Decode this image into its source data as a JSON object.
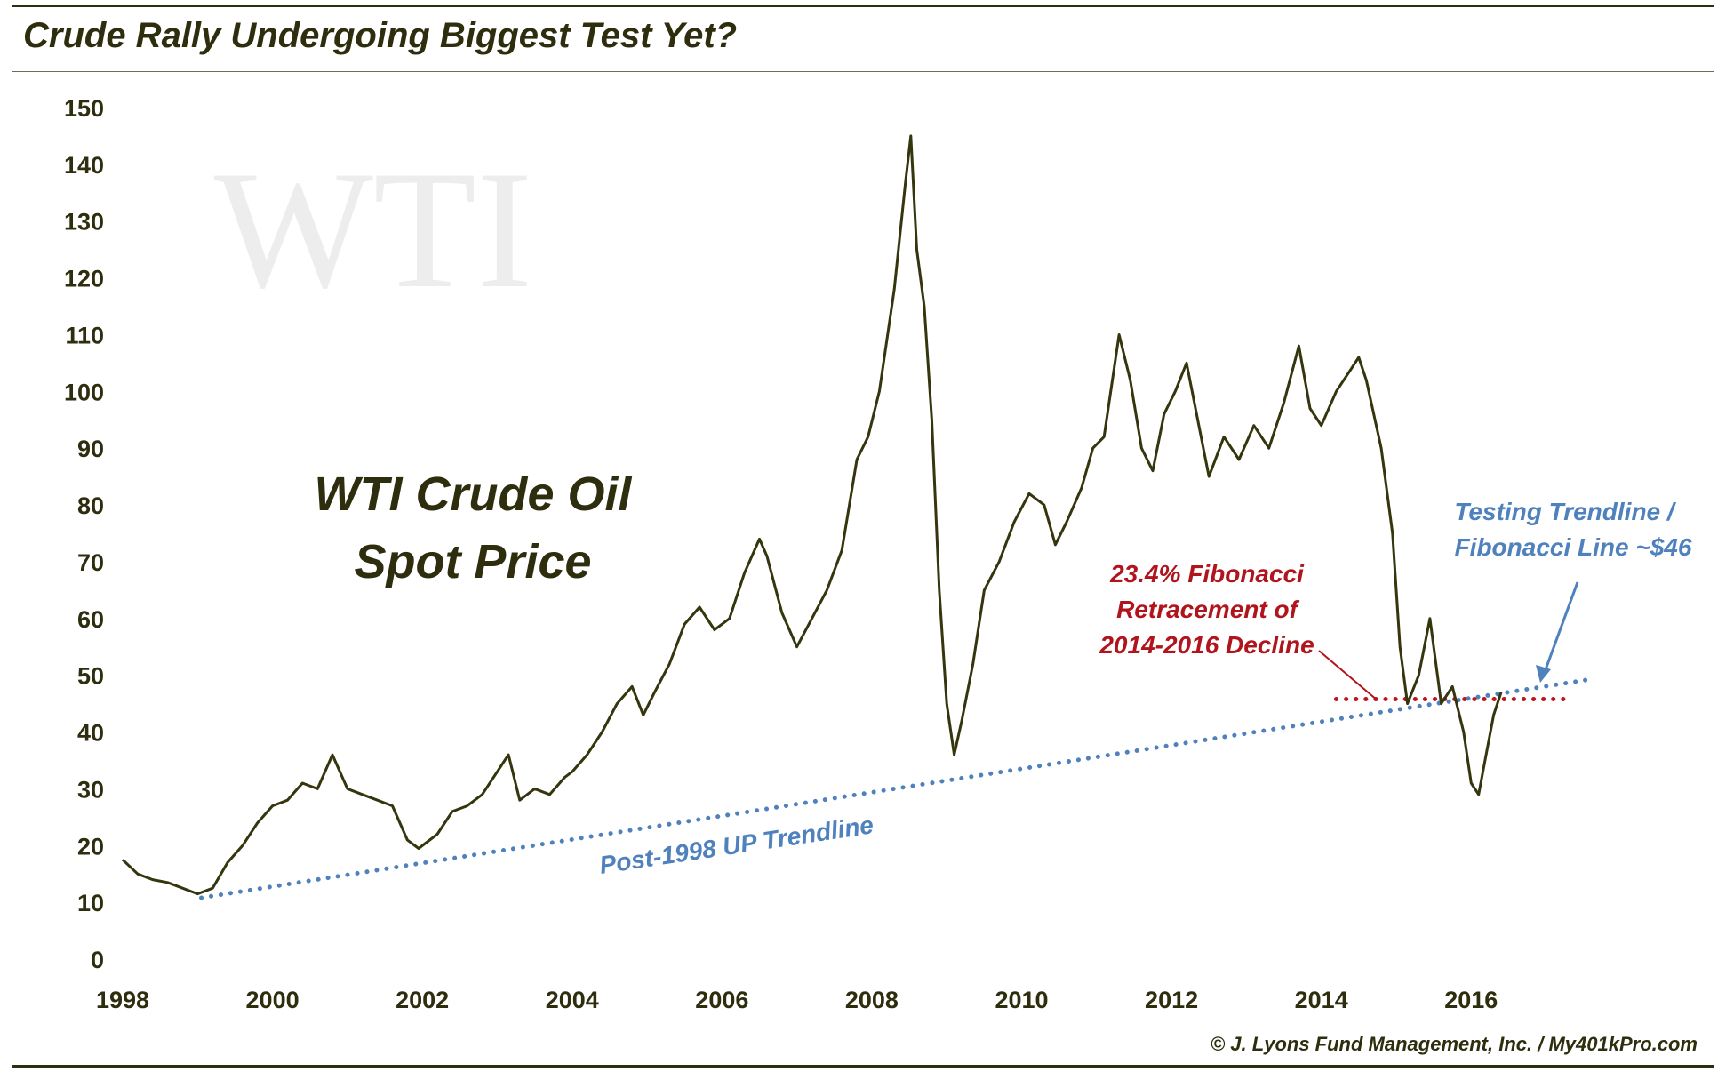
{
  "title": "Crude Rally Undergoing Biggest Test Yet?",
  "credit": "© J. Lyons Fund Management, Inc. / My401kPro.com",
  "watermark": "WTI",
  "chart_data": {
    "type": "line",
    "title": "Crude Rally Undergoing Biggest Test Yet?",
    "label": [
      "WTI Crude Oil",
      "Spot Price"
    ],
    "xlim": [
      1998,
      2018.5
    ],
    "ylim": [
      0,
      150
    ],
    "x_ticks": [
      "1998",
      "2000",
      "2002",
      "2004",
      "2006",
      "2008",
      "2010",
      "2012",
      "2014",
      "2016"
    ],
    "y_ticks": [
      "0",
      "10",
      "20",
      "30",
      "40",
      "50",
      "60",
      "70",
      "80",
      "90",
      "100",
      "110",
      "120",
      "130",
      "140",
      "150"
    ],
    "grid": false,
    "colors": {
      "price": "#35350e",
      "trendline": "#4f81bd",
      "fibonacci": "#c0141c",
      "text": "#2e2e0f"
    },
    "series": [
      {
        "x": [
          1998.0,
          1998.2,
          1998.4,
          1998.6,
          1998.8,
          1999.0,
          1999.2,
          1999.4,
          1999.6,
          1999.8,
          2000.0,
          2000.2,
          2000.4,
          2000.6,
          2000.8,
          2001.0,
          2001.2,
          2001.4,
          2001.6,
          2001.8,
          2001.95,
          2002.2,
          2002.4,
          2002.6,
          2002.8,
          2003.0,
          2003.15,
          2003.3,
          2003.5,
          2003.7,
          2003.9,
          2004.0,
          2004.2,
          2004.4,
          2004.6,
          2004.8,
          2004.95,
          2005.1,
          2005.3,
          2005.5,
          2005.7,
          2005.9,
          2006.1,
          2006.3,
          2006.5,
          2006.6,
          2006.8,
          2007.0,
          2007.2,
          2007.4,
          2007.6,
          2007.8,
          2007.95,
          2008.1,
          2008.3,
          2008.45,
          2008.52,
          2008.6,
          2008.7,
          2008.8,
          2008.9,
          2009.0,
          2009.1,
          2009.2,
          2009.35,
          2009.5,
          2009.7,
          2009.9,
          2010.1,
          2010.3,
          2010.45,
          2010.6,
          2010.8,
          2010.95,
          2011.1,
          2011.3,
          2011.45,
          2011.6,
          2011.75,
          2011.9,
          2012.05,
          2012.2,
          2012.35,
          2012.5,
          2012.7,
          2012.9,
          2013.1,
          2013.3,
          2013.5,
          2013.7,
          2013.85,
          2014.0,
          2014.2,
          2014.4,
          2014.5,
          2014.6,
          2014.8,
          2014.95,
          2015.05,
          2015.15,
          2015.3,
          2015.45,
          2015.6,
          2015.75,
          2015.9,
          2016.0,
          2016.1,
          2016.2,
          2016.3,
          2016.4
        ],
        "y": [
          17.5,
          15.0,
          14.0,
          13.5,
          12.5,
          11.5,
          12.5,
          17.0,
          20.0,
          24.0,
          27.0,
          28.0,
          31.0,
          30.0,
          36.0,
          30.0,
          29.0,
          28.0,
          27.0,
          21.0,
          19.5,
          22.0,
          26.0,
          27.0,
          29.0,
          33.0,
          36.0,
          28.0,
          30.0,
          29.0,
          32.0,
          33.0,
          36.0,
          40.0,
          45.0,
          48.0,
          43.0,
          47.0,
          52.0,
          59.0,
          62.0,
          58.0,
          60.0,
          68.0,
          74.0,
          71.0,
          61.0,
          55.0,
          60.0,
          65.0,
          72.0,
          88.0,
          92.0,
          100.0,
          118.0,
          137.0,
          145.0,
          125.0,
          115.0,
          95.0,
          65.0,
          45.0,
          36.0,
          42.0,
          52.0,
          65.0,
          70.0,
          77.0,
          82.0,
          80.0,
          73.0,
          77.0,
          83.0,
          90.0,
          92.0,
          110.0,
          102.0,
          90.0,
          86.0,
          96.0,
          100.0,
          105.0,
          95.0,
          85.0,
          92.0,
          88.0,
          94.0,
          90.0,
          98.0,
          108.0,
          97.0,
          94.0,
          100.0,
          104.0,
          106.0,
          102.0,
          90.0,
          75.0,
          55.0,
          45.0,
          50.0,
          60.0,
          45.0,
          48.0,
          40.0,
          31.0,
          29.0,
          36.0,
          43.0,
          47.0
        ]
      }
    ],
    "trendline": {
      "label": "Post-1998 UP Trendline",
      "x": [
        1999.05,
        2017.6
      ],
      "y": [
        10.8,
        49.3
      ]
    },
    "fibonacci_line": {
      "x": [
        2014.2,
        2017.3
      ],
      "y": [
        45.8,
        45.8
      ]
    },
    "annotations": [
      {
        "text": [
          "23.4% Fibonacci",
          "Retracement of",
          "2014-2016 Decline"
        ],
        "color": "#b0141c"
      },
      {
        "text": [
          "Testing Trendline /",
          "Fibonacci Line ~$46"
        ],
        "color": "#4f81bd"
      }
    ]
  }
}
